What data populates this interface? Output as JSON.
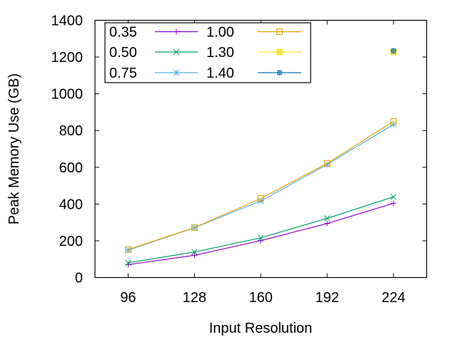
{
  "chart_data": {
    "type": "line",
    "title": "",
    "xlabel": "Input Resolution",
    "ylabel": "Peak Memory Use (GB)",
    "xlim": [
      80,
      240
    ],
    "ylim": [
      0,
      1400
    ],
    "grid": false,
    "legend_position": "top-left",
    "x_ticks": [
      96,
      128,
      160,
      192,
      224
    ],
    "x_tick_labels": [
      "96",
      "128",
      "160",
      "192",
      "224"
    ],
    "y_ticks": [
      0,
      200,
      400,
      600,
      800,
      1000,
      1200,
      1400
    ],
    "y_tick_labels": [
      "0",
      "200",
      "400",
      "600",
      "800",
      "1000",
      "1200",
      "1400"
    ],
    "series": [
      {
        "name": "0.35",
        "color": "#9400d3",
        "marker": "plus",
        "x": [
          96,
          128,
          160,
          192,
          224
        ],
        "values": [
          70,
          121,
          201,
          294,
          404
        ]
      },
      {
        "name": "0.50",
        "color": "#009e73",
        "marker": "cross",
        "x": [
          96,
          128,
          160,
          192,
          224
        ],
        "values": [
          80,
          139,
          216,
          322,
          439
        ]
      },
      {
        "name": "0.75",
        "color": "#56b4e9",
        "marker": "star",
        "x": [
          96,
          128,
          160,
          192,
          224
        ],
        "values": [
          149,
          271,
          417,
          615,
          834
        ]
      },
      {
        "name": "1.00",
        "color": "#e69f00",
        "marker": "open-square",
        "x": [
          96,
          128,
          160,
          192,
          224
        ],
        "values": [
          152,
          272,
          430,
          621,
          850
        ]
      },
      {
        "name": "1.30",
        "color": "#f0e442",
        "marker": "filled-square",
        "x": [
          224
        ],
        "values": [
          1228
        ]
      },
      {
        "name": "1.40",
        "color": "#0072b2",
        "marker": "open-circle",
        "x": [
          224
        ],
        "values": [
          1234
        ]
      }
    ]
  }
}
